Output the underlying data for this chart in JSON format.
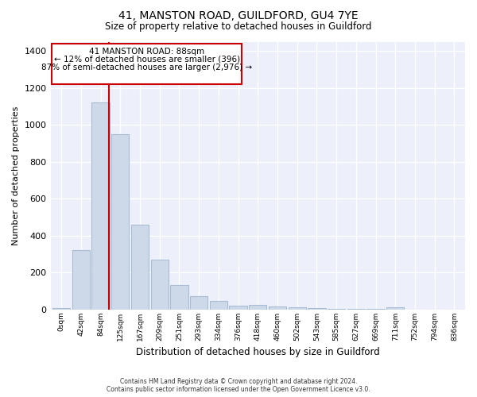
{
  "title": "41, MANSTON ROAD, GUILDFORD, GU4 7YE",
  "subtitle": "Size of property relative to detached houses in Guildford",
  "xlabel": "Distribution of detached houses by size in Guildford",
  "ylabel": "Number of detached properties",
  "bar_color": "#cdd9e8",
  "bar_edge_color": "#a8bdd4",
  "background_color": "#edf0fa",
  "grid_color": "#ffffff",
  "tick_labels": [
    "0sqm",
    "42sqm",
    "84sqm",
    "125sqm",
    "167sqm",
    "209sqm",
    "251sqm",
    "293sqm",
    "334sqm",
    "376sqm",
    "418sqm",
    "460sqm",
    "502sqm",
    "543sqm",
    "585sqm",
    "627sqm",
    "669sqm",
    "711sqm",
    "752sqm",
    "794sqm",
    "836sqm"
  ],
  "bar_heights": [
    5,
    320,
    1120,
    950,
    460,
    270,
    130,
    70,
    45,
    20,
    25,
    15,
    12,
    5,
    3,
    3,
    2,
    10,
    0,
    0,
    0
  ],
  "ylim": [
    0,
    1450
  ],
  "yticks": [
    0,
    200,
    400,
    600,
    800,
    1000,
    1200,
    1400
  ],
  "red_line_x": 2.42,
  "annotation_title": "41 MANSTON ROAD: 88sqm",
  "annotation_line1": "← 12% of detached houses are smaller (396)",
  "annotation_line2": "87% of semi-detached houses are larger (2,976) →",
  "footer_line1": "Contains HM Land Registry data © Crown copyright and database right 2024.",
  "footer_line2": "Contains public sector information licensed under the Open Government Licence v3.0."
}
